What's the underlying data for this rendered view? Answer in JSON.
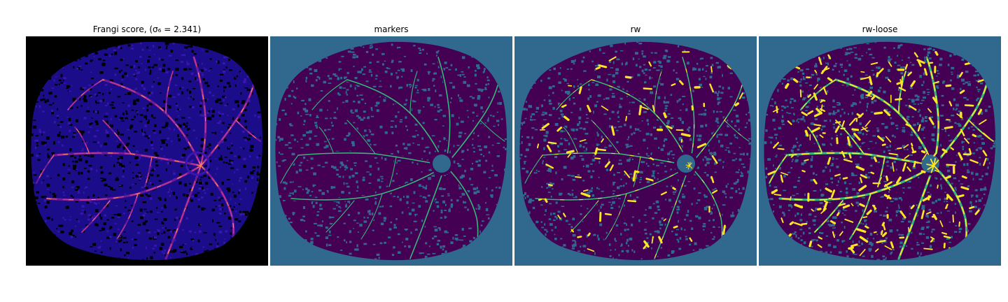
{
  "figure": {
    "panels": [
      {
        "id": "frangi",
        "title": "Frangi score, (σ₆ = 2.341)",
        "colormap": "magma",
        "background_color": "#000000",
        "tissue_color": "#1b0c8a",
        "highlight_colors": [
          "#6b1b9a",
          "#c2368a",
          "#ff8c5a"
        ]
      },
      {
        "id": "markers",
        "title": "markers",
        "colormap": "viridis",
        "background_color": "#31688e",
        "tissue_color": "#440154",
        "vessel_color": "#35b779"
      },
      {
        "id": "rw",
        "title": "rw",
        "colormap": "viridis",
        "background_color": "#31688e",
        "tissue_color": "#440154",
        "vessel_color": "#35b779",
        "highlight_color": "#fde725"
      },
      {
        "id": "rw-loose",
        "title": "rw-loose",
        "colormap": "viridis",
        "background_color": "#31688e",
        "tissue_color": "#440154",
        "vessel_color": "#35b779",
        "highlight_color": "#fde725"
      }
    ]
  }
}
